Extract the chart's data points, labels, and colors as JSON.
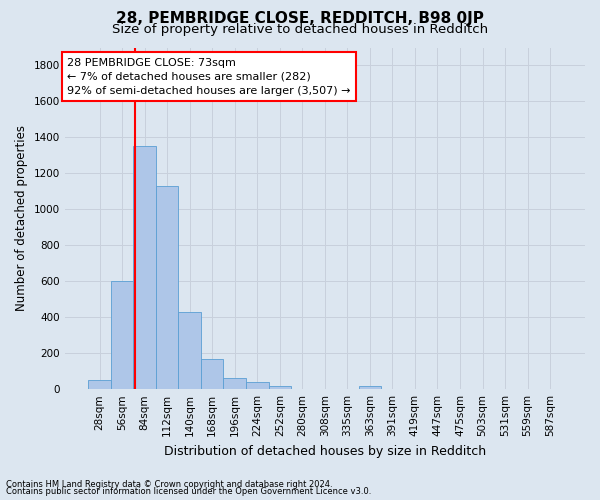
{
  "title": "28, PEMBRIDGE CLOSE, REDDITCH, B98 0JP",
  "subtitle": "Size of property relative to detached houses in Redditch",
  "xlabel": "Distribution of detached houses by size in Redditch",
  "ylabel": "Number of detached properties",
  "footer_line1": "Contains HM Land Registry data © Crown copyright and database right 2024.",
  "footer_line2": "Contains public sector information licensed under the Open Government Licence v3.0.",
  "bin_labels": [
    "28sqm",
    "56sqm",
    "84sqm",
    "112sqm",
    "140sqm",
    "168sqm",
    "196sqm",
    "224sqm",
    "252sqm",
    "280sqm",
    "308sqm",
    "335sqm",
    "363sqm",
    "391sqm",
    "419sqm",
    "447sqm",
    "475sqm",
    "503sqm",
    "531sqm",
    "559sqm",
    "587sqm"
  ],
  "bar_values": [
    50,
    600,
    1350,
    1130,
    430,
    170,
    60,
    40,
    15,
    0,
    0,
    0,
    20,
    0,
    0,
    0,
    0,
    0,
    0,
    0,
    0
  ],
  "bar_color": "#aec6e8",
  "bar_edge_color": "#5a9fd4",
  "ylim": [
    0,
    1900
  ],
  "yticks": [
    0,
    200,
    400,
    600,
    800,
    1000,
    1200,
    1400,
    1600,
    1800
  ],
  "grid_color": "#c8d0dc",
  "bg_color": "#dce6f0",
  "red_line_x": 1.57,
  "annotation_text_line1": "28 PEMBRIDGE CLOSE: 73sqm",
  "annotation_text_line2": "← 7% of detached houses are smaller (282)",
  "annotation_text_line3": "92% of semi-detached houses are larger (3,507) →",
  "title_fontsize": 11,
  "subtitle_fontsize": 9.5,
  "xlabel_fontsize": 9,
  "ylabel_fontsize": 8.5,
  "tick_fontsize": 7.5,
  "annotation_fontsize": 8,
  "footer_fontsize": 6
}
